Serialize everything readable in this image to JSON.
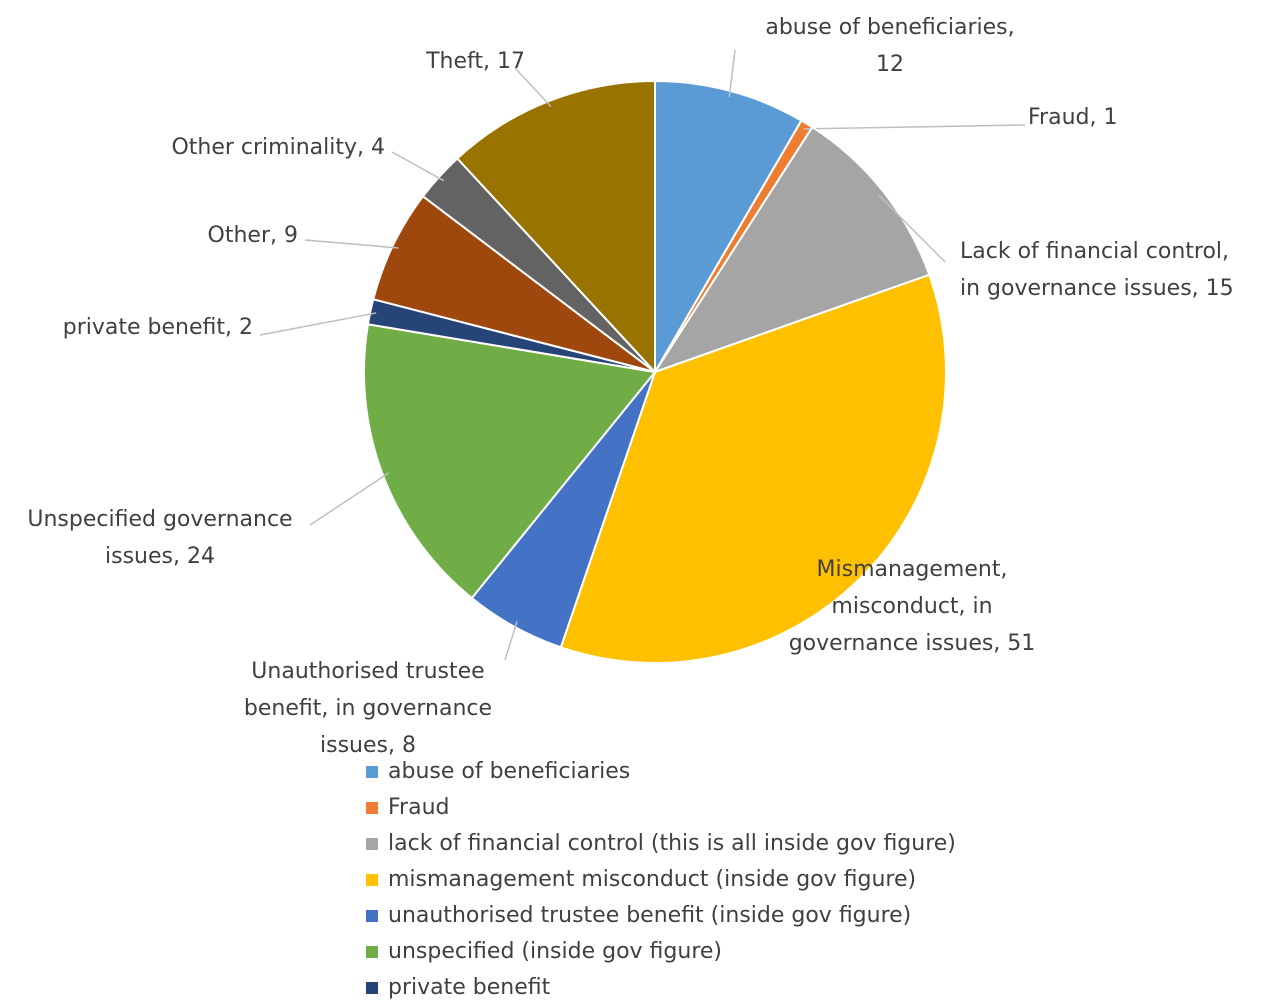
{
  "chart_data": {
    "type": "pie",
    "categories": [
      "abuse of beneficiaries",
      "Fraud",
      "lack of financial control (this is all inside gov figure)",
      "mismanagement misconduct (inside gov figure)",
      "unauthorised trustee benefit (inside gov figure)",
      "unspecified (inside gov figure)",
      "private benefit",
      null,
      null,
      null
    ],
    "values": [
      12,
      1,
      15,
      51,
      8,
      24,
      2,
      9,
      4,
      17
    ],
    "value_labels": [
      [
        "abuse of beneficiaries,",
        "12"
      ],
      [
        "Fraud, 1"
      ],
      [
        "Lack of financial control,",
        "in governance issues, 15"
      ],
      [
        "Mismanagement,",
        "misconduct, in",
        "governance issues, 51"
      ],
      [
        "Unauthorised trustee",
        "benefit, in governance",
        "issues, 8"
      ],
      [
        "Unspecified governance",
        "issues, 24"
      ],
      [
        "private benefit, 2"
      ],
      [
        "Other, 9"
      ],
      [
        "Other criminality, 4"
      ],
      [
        "Theft, 17"
      ]
    ],
    "colors": [
      "#5b9bd5",
      "#ed7d31",
      "#a5a5a5",
      "#ffc000",
      "#4472c4",
      "#70ad47",
      "#264478",
      "#9e480e",
      "#636363",
      "#997300"
    ],
    "legend": "bottom"
  }
}
